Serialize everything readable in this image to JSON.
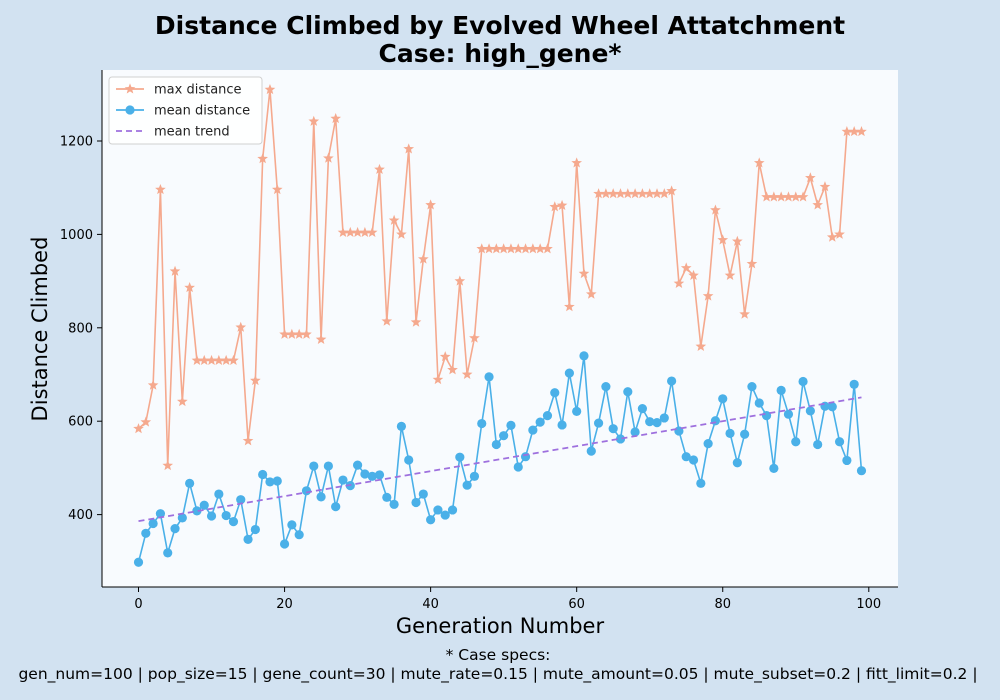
{
  "chart_data": {
    "type": "line",
    "title": "Distance Climbed by Evolved Wheel Attatchment",
    "subtitle": "Case: high_gene*",
    "xlabel": "Generation Number",
    "ylabel": "Distance Climbed",
    "xlim": [
      -5,
      104
    ],
    "ylim": [
      245,
      1352
    ],
    "xticks": [
      0,
      20,
      40,
      60,
      80,
      100
    ],
    "yticks": [
      400,
      600,
      800,
      1000,
      1200
    ],
    "grid": false,
    "legend_position": "top-left",
    "series": [
      {
        "name": "max distance",
        "color": "#f5a98e",
        "marker": "star",
        "values": [
          584,
          598,
          677,
          1096,
          505,
          921,
          642,
          886,
          730,
          730,
          730,
          730,
          730,
          730,
          801,
          558,
          687,
          1162,
          1310,
          1096,
          786,
          786,
          786,
          786,
          1242,
          775,
          1163,
          1248,
          1004,
          1004,
          1004,
          1004,
          1004,
          1139,
          814,
          1030,
          1000,
          1183,
          812,
          947,
          1063,
          689,
          738,
          710,
          900,
          700,
          778,
          969,
          969,
          969,
          969,
          969,
          969,
          969,
          969,
          969,
          969,
          1059,
          1062,
          845,
          1153,
          916,
          872,
          1087,
          1087,
          1087,
          1087,
          1087,
          1087,
          1087,
          1087,
          1087,
          1087,
          1093,
          895,
          928,
          912,
          760,
          868,
          1052,
          988,
          912,
          985,
          829,
          937,
          1153,
          1080,
          1080,
          1080,
          1080,
          1080,
          1080,
          1121,
          1063,
          1102,
          994,
          1000,
          1220,
          1220,
          1220
        ]
      },
      {
        "name": "mean distance",
        "color": "#4ab0e8",
        "marker": "circle",
        "values": [
          298,
          360,
          381,
          402,
          318,
          370,
          393,
          467,
          408,
          420,
          397,
          444,
          398,
          385,
          432,
          347,
          368,
          486,
          470,
          472,
          337,
          378,
          357,
          451,
          504,
          438,
          504,
          417,
          474,
          462,
          506,
          487,
          482,
          485,
          437,
          422,
          589,
          517,
          426,
          444,
          389,
          410,
          399,
          410,
          523,
          463,
          482,
          595,
          695,
          550,
          569,
          591,
          502,
          524,
          581,
          598,
          612,
          661,
          592,
          703,
          621,
          740,
          536,
          596,
          674,
          584,
          562,
          663,
          577,
          627,
          599,
          597,
          607,
          686,
          579,
          524,
          517,
          467,
          552,
          601,
          648,
          574,
          511,
          572,
          674,
          639,
          612,
          499,
          666,
          615,
          556,
          685,
          622,
          550,
          632,
          631,
          556,
          516,
          679,
          494
        ]
      },
      {
        "name": "mean trend",
        "color": "#9e70de",
        "style": "dashed",
        "x": [
          0,
          99
        ],
        "values": [
          386,
          651
        ]
      }
    ]
  },
  "footnote": {
    "line1": "* Case specs:",
    "line2": "gen_num=100 | pop_size=15 | gene_count=30 | mute_rate=0.15 | mute_amount=0.05 | mute_subset=0.2 | fitt_limit=0.2 |"
  }
}
